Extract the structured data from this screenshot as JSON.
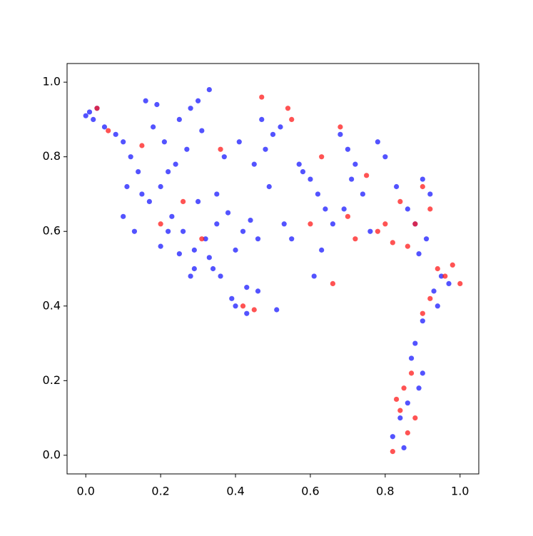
{
  "chart_data": {
    "type": "scatter",
    "series": [
      {
        "color": "#1a1aff",
        "x": [
          0.0,
          0.01,
          0.02,
          0.03,
          0.05,
          0.08,
          0.1,
          0.12,
          0.14,
          0.11,
          0.15,
          0.17,
          0.2,
          0.22,
          0.18,
          0.25,
          0.28,
          0.3,
          0.33,
          0.31,
          0.27,
          0.24,
          0.21,
          0.19,
          0.16,
          0.23,
          0.26,
          0.29,
          0.32,
          0.35,
          0.38,
          0.4,
          0.42,
          0.44,
          0.46,
          0.43,
          0.39,
          0.36,
          0.34,
          0.37,
          0.41,
          0.45,
          0.48,
          0.5,
          0.52,
          0.49,
          0.47,
          0.53,
          0.55,
          0.57,
          0.6,
          0.62,
          0.64,
          0.66,
          0.63,
          0.58,
          0.61,
          0.68,
          0.7,
          0.72,
          0.74,
          0.71,
          0.69,
          0.76,
          0.78,
          0.8,
          0.83,
          0.86,
          0.88,
          0.9,
          0.92,
          0.91,
          0.89,
          0.93,
          0.95,
          0.97,
          0.94,
          0.9,
          0.88,
          0.87,
          0.9,
          0.89,
          0.86,
          0.84,
          0.82,
          0.85,
          0.22,
          0.25,
          0.28,
          0.13,
          0.1,
          0.2,
          0.3,
          0.35,
          0.4,
          0.43,
          0.46,
          0.51,
          0.33,
          0.29
        ],
        "values": [
          0.91,
          0.92,
          0.9,
          0.93,
          0.88,
          0.86,
          0.84,
          0.8,
          0.76,
          0.72,
          0.7,
          0.68,
          0.72,
          0.76,
          0.88,
          0.9,
          0.93,
          0.95,
          0.98,
          0.87,
          0.82,
          0.78,
          0.84,
          0.94,
          0.95,
          0.64,
          0.6,
          0.55,
          0.58,
          0.62,
          0.65,
          0.55,
          0.6,
          0.63,
          0.58,
          0.45,
          0.42,
          0.48,
          0.5,
          0.8,
          0.84,
          0.78,
          0.82,
          0.86,
          0.88,
          0.72,
          0.9,
          0.62,
          0.58,
          0.78,
          0.74,
          0.7,
          0.66,
          0.62,
          0.55,
          0.76,
          0.48,
          0.86,
          0.82,
          0.78,
          0.7,
          0.74,
          0.66,
          0.6,
          0.84,
          0.8,
          0.72,
          0.66,
          0.62,
          0.74,
          0.7,
          0.58,
          0.54,
          0.44,
          0.48,
          0.46,
          0.4,
          0.36,
          0.3,
          0.26,
          0.22,
          0.18,
          0.14,
          0.1,
          0.05,
          0.02,
          0.6,
          0.54,
          0.48,
          0.6,
          0.64,
          0.56,
          0.68,
          0.7,
          0.4,
          0.38,
          0.44,
          0.39,
          0.53,
          0.5
        ]
      },
      {
        "color": "#ff1a1a",
        "x": [
          0.03,
          0.06,
          0.15,
          0.2,
          0.26,
          0.31,
          0.36,
          0.42,
          0.47,
          0.54,
          0.55,
          0.6,
          0.63,
          0.66,
          0.68,
          0.7,
          0.72,
          0.75,
          0.78,
          0.8,
          0.82,
          0.84,
          0.86,
          0.88,
          0.9,
          0.92,
          0.94,
          0.96,
          0.98,
          1.0,
          0.92,
          0.9,
          0.87,
          0.85,
          0.84,
          0.86,
          0.88,
          0.82,
          0.83,
          0.45
        ],
        "values": [
          0.93,
          0.87,
          0.83,
          0.62,
          0.68,
          0.58,
          0.82,
          0.4,
          0.96,
          0.93,
          0.9,
          0.62,
          0.8,
          0.46,
          0.88,
          0.64,
          0.58,
          0.75,
          0.6,
          0.62,
          0.57,
          0.68,
          0.56,
          0.62,
          0.72,
          0.66,
          0.5,
          0.48,
          0.51,
          0.46,
          0.42,
          0.38,
          0.22,
          0.18,
          0.12,
          0.06,
          0.1,
          0.01,
          0.15,
          0.39
        ]
      }
    ],
    "xlim": [
      -0.05,
      1.05
    ],
    "ylim": [
      -0.05,
      1.05
    ],
    "xticks": [
      {
        "value": 0,
        "label": "0.0"
      },
      0.2,
      0.4,
      0.6,
      0.8,
      {
        "value": 1,
        "label": "1.0"
      }
    ],
    "yticks": [
      {
        "value": 0,
        "label": "0.0"
      },
      0.2,
      0.4,
      0.6,
      0.8,
      {
        "value": 1,
        "label": "1.0"
      }
    ]
  }
}
